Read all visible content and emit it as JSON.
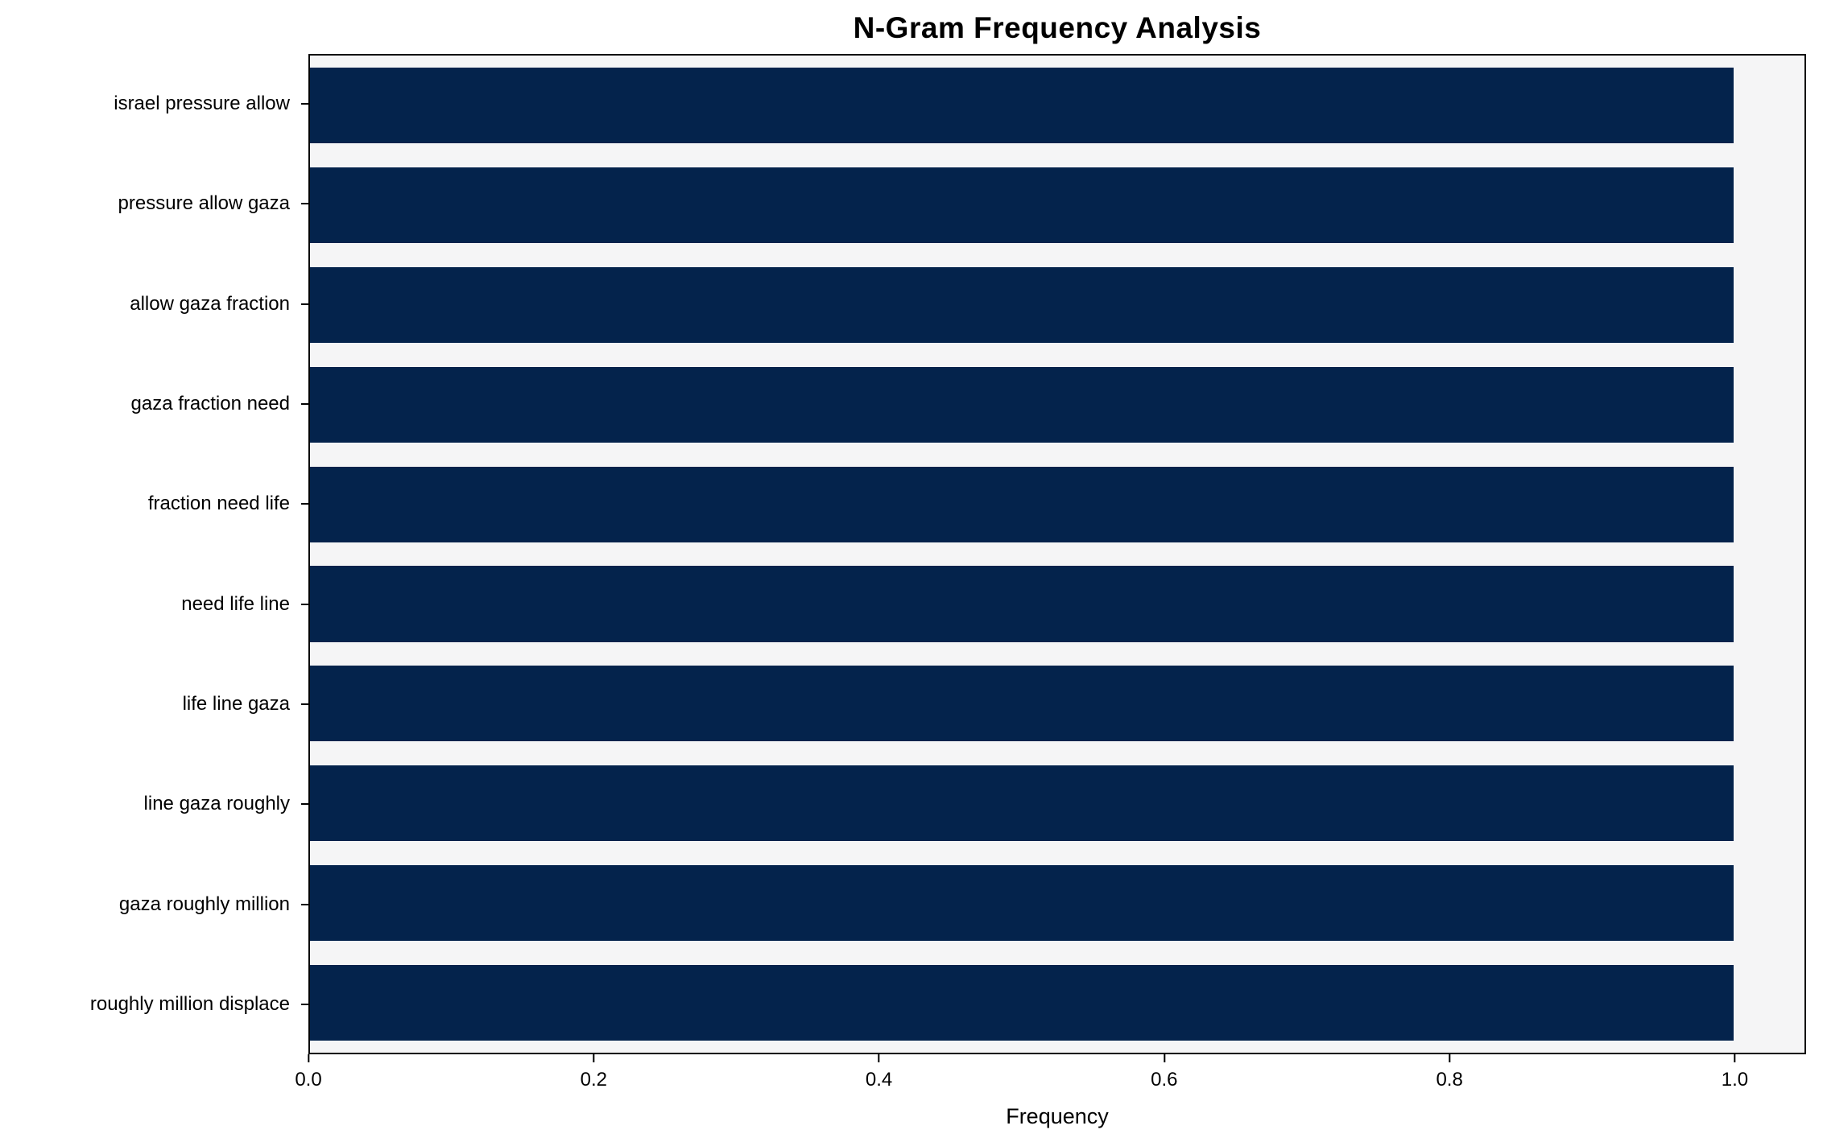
{
  "title": "N-Gram Frequency Analysis",
  "colors": {
    "bar": "#04234c",
    "plot_background": "#f5f5f6",
    "figure_background": "#ffffff",
    "axis": "#000000"
  },
  "chart_data": {
    "type": "bar",
    "orientation": "horizontal",
    "title": "N-Gram Frequency Analysis",
    "categories": [
      "israel pressure allow",
      "pressure allow gaza",
      "allow gaza fraction",
      "gaza fraction need",
      "fraction need life",
      "need life line",
      "life line gaza",
      "line gaza roughly",
      "gaza roughly million",
      "roughly million displace"
    ],
    "values": [
      1.0,
      1.0,
      1.0,
      1.0,
      1.0,
      1.0,
      1.0,
      1.0,
      1.0,
      1.0
    ],
    "xlabel": "Frequency",
    "ylabel": "",
    "xlim": [
      0,
      1.05
    ],
    "xticks": [
      0.0,
      0.2,
      0.4,
      0.6,
      0.8,
      1.0
    ],
    "xtick_labels": [
      "0.0",
      "0.2",
      "0.4",
      "0.6",
      "0.8",
      "1.0"
    ],
    "grid": false,
    "legend_position": "none"
  }
}
